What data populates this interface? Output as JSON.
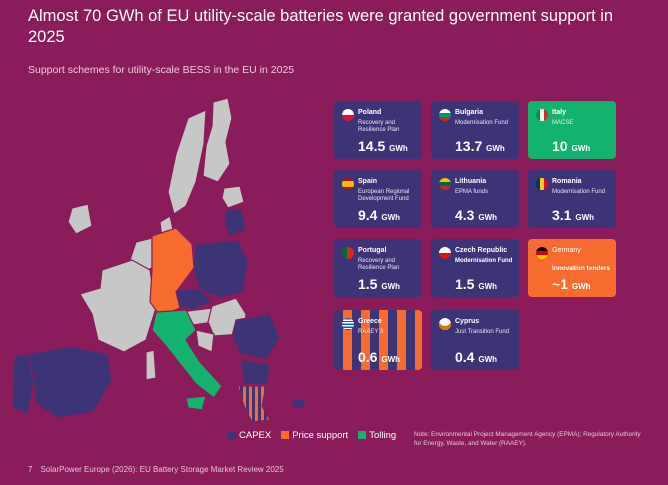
{
  "header": {
    "title": "Almost 70 GWh of EU utility-scale batteries were granted government support in 2025",
    "subtitle": "Support schemes for utility-scale BESS in the EU in 2025"
  },
  "colors": {
    "background": "#8a1c5b",
    "capex": "#3d3477",
    "price_support": "#f76c2e",
    "tolling": "#13b36f",
    "no_data": "#c7c7c7"
  },
  "legend": {
    "capex": "CAPEX",
    "price_support": "Price support",
    "tolling": "Tolling"
  },
  "note": "Note: Environmental Project Management Agency (EPMA); Regulatory Authority for Energy, Waste, and Water (RAAEY).",
  "footer": {
    "page": "7",
    "source": "SolarPower Europe (2026): EU Battery Storage Market Review 2025"
  },
  "chart_data": {
    "type": "table",
    "unit": "GWh",
    "entries": [
      {
        "country": "Poland",
        "scheme": "Recovery and Resilience Plan",
        "value": "14.5",
        "unit": "GWh",
        "category": "CAPEX",
        "flag": "poland-flag-icon"
      },
      {
        "country": "Bulgaria",
        "scheme": "Modernisation Fund",
        "value": "13.7",
        "unit": "GWh",
        "category": "CAPEX",
        "flag": "bulgaria-flag-icon"
      },
      {
        "country": "Italy",
        "scheme": "MACSE",
        "value": "10",
        "unit": "GWh",
        "category": "Tolling",
        "flag": "italy-flag-icon"
      },
      {
        "country": "Spain",
        "scheme": "European Regional Development Fund",
        "value": "9.4",
        "unit": "GWh",
        "category": "CAPEX",
        "flag": "spain-flag-icon"
      },
      {
        "country": "Lithuania",
        "scheme": "EPMA funds",
        "value": "4.3",
        "unit": "GWh",
        "category": "CAPEX",
        "flag": "lithuania-flag-icon"
      },
      {
        "country": "Romania",
        "scheme": "Modernisation Fund",
        "value": "3.1",
        "unit": "GWh",
        "category": "CAPEX",
        "flag": "romania-flag-icon"
      },
      {
        "country": "Portugal",
        "scheme": "Recovery and Resilience Plan",
        "value": "1.5",
        "unit": "GWh",
        "category": "CAPEX",
        "flag": "portugal-flag-icon"
      },
      {
        "country": "Czech Republic",
        "scheme": "Modernisation Fund",
        "value": "1.5",
        "unit": "GWh",
        "category": "CAPEX",
        "flag": "czech-flag-icon"
      },
      {
        "country": "Germany",
        "scheme": "Innovation tenders",
        "value": "~1",
        "unit": "GWh",
        "category": "Price support",
        "flag": "germany-flag-icon"
      },
      {
        "country": "Greece",
        "scheme": "RAAEY 3",
        "value": "0.6",
        "unit": "GWh",
        "category": "CAPEX / Price support",
        "flag": "greece-flag-icon"
      },
      {
        "country": "Cyprus",
        "scheme": "Just Transition Fund",
        "value": "0.4",
        "unit": "GWh",
        "category": "CAPEX",
        "flag": "cyprus-flag-icon"
      }
    ]
  }
}
